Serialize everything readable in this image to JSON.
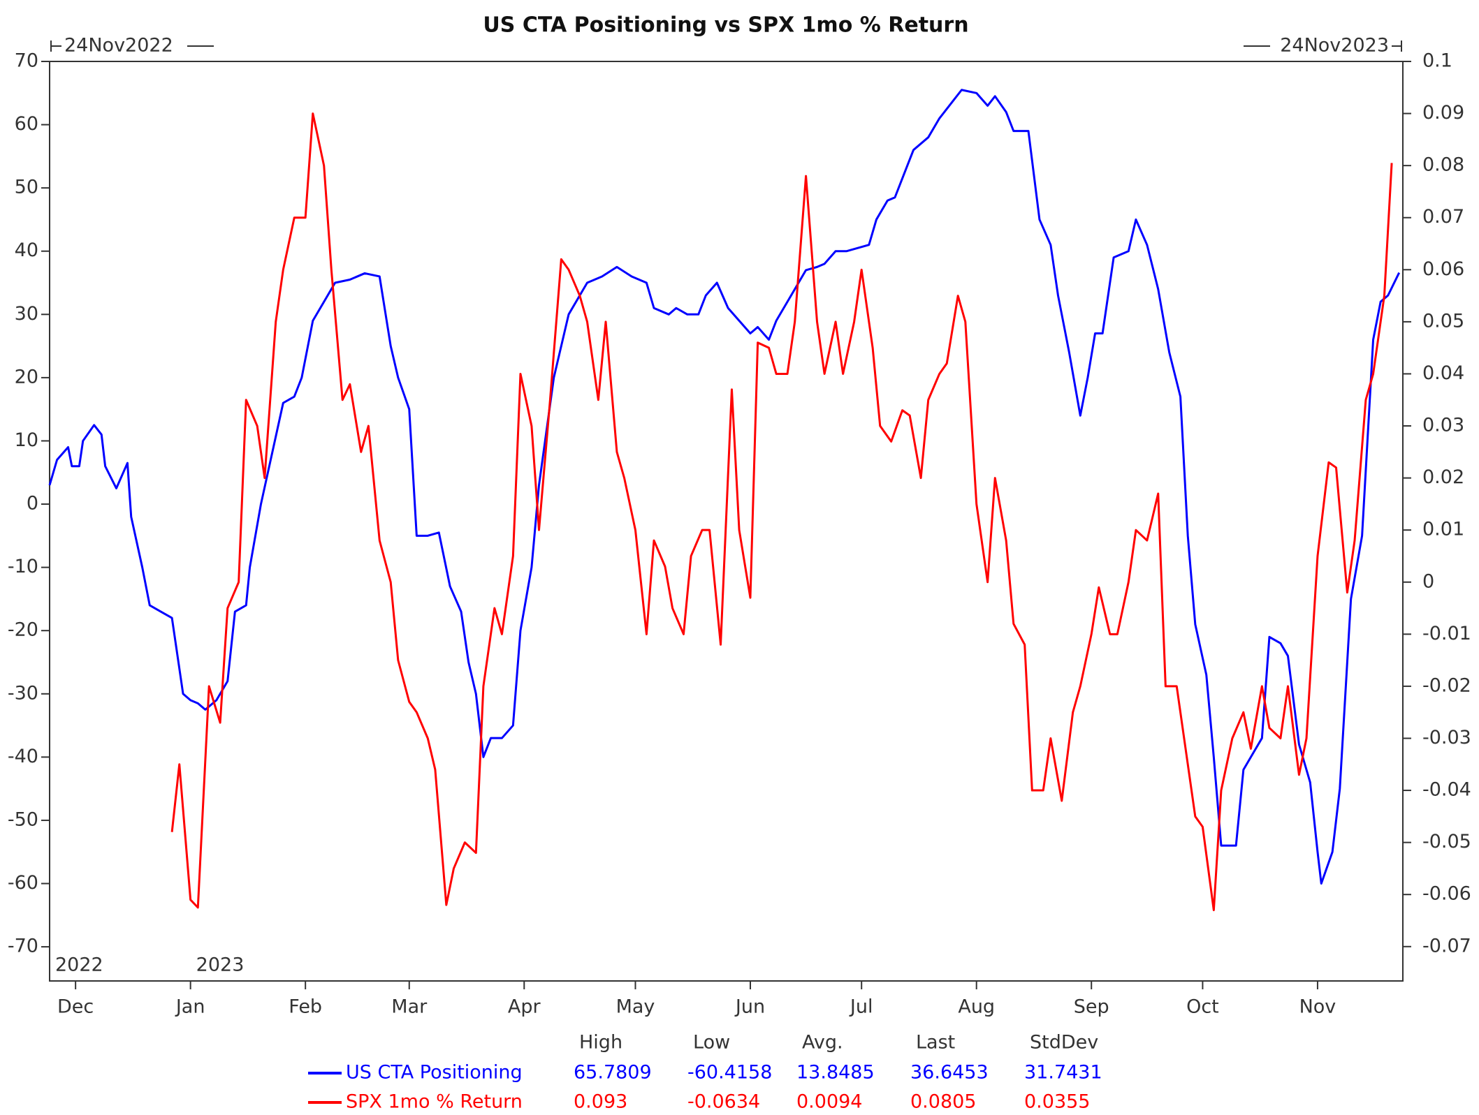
{
  "chart_data": {
    "type": "line",
    "title": "US CTA Positioning vs SPX 1mo % Return",
    "start_label": "24Nov2022",
    "end_label": "24Nov2023",
    "xlim": [
      0,
      365
    ],
    "xticks": [
      {
        "value": 7,
        "label": "Dec"
      },
      {
        "value": 38,
        "label": "Jan"
      },
      {
        "value": 69,
        "label": "Feb"
      },
      {
        "value": 97,
        "label": "Mar"
      },
      {
        "value": 128,
        "label": "Apr"
      },
      {
        "value": 158,
        "label": "May"
      },
      {
        "value": 189,
        "label": "Jun"
      },
      {
        "value": 219,
        "label": "Jul"
      },
      {
        "value": 250,
        "label": "Aug"
      },
      {
        "value": 281,
        "label": "Sep"
      },
      {
        "value": 311,
        "label": "Oct"
      },
      {
        "value": 342,
        "label": "Nov"
      }
    ],
    "year_labels": [
      {
        "value": 0,
        "label": "2022"
      },
      {
        "value": 38,
        "label": "2023"
      }
    ],
    "ylim": [
      -75.4,
      70
    ],
    "yticks": [
      -70,
      -60,
      -50,
      -40,
      -30,
      -20,
      -10,
      0,
      10,
      20,
      30,
      40,
      50,
      60,
      70
    ],
    "y2lim": [
      -0.0766,
      0.1
    ],
    "y2ticks": [
      -0.07,
      -0.06,
      -0.05,
      -0.04,
      -0.03,
      -0.02,
      -0.01,
      0,
      0.01,
      0.02,
      0.03,
      0.04,
      0.05,
      0.06,
      0.07,
      0.08,
      0.09,
      0.1
    ],
    "grid": false,
    "stats_headers": [
      "High",
      "Low",
      "Avg.",
      "Last",
      "StdDev"
    ],
    "series": [
      {
        "name": "US CTA Positioning",
        "color": "#0000ff",
        "axis": "y",
        "stats": [
          65.7809,
          -60.4158,
          13.8485,
          36.6453,
          31.7431
        ],
        "x": [
          0,
          2,
          5,
          6,
          8,
          9,
          12,
          14,
          15,
          18,
          21,
          22,
          25,
          27,
          30,
          33,
          36,
          38,
          40,
          42,
          45,
          48,
          50,
          53,
          54,
          57,
          60,
          63,
          66,
          68,
          71,
          74,
          77,
          81,
          85,
          89,
          92,
          94,
          97,
          99,
          102,
          105,
          108,
          111,
          113,
          115,
          117,
          119,
          122,
          125,
          127,
          130,
          132,
          136,
          140,
          143,
          145,
          149,
          153,
          157,
          161,
          163,
          167,
          169,
          172,
          175,
          177,
          180,
          183,
          186,
          189,
          191,
          194,
          196,
          199,
          201,
          204,
          207,
          209,
          212,
          215,
          218,
          221,
          223,
          226,
          228,
          231,
          233,
          237,
          240,
          244,
          246,
          250,
          253,
          255,
          258,
          260,
          264,
          267,
          270,
          272,
          275,
          278,
          280,
          282,
          284,
          287,
          291,
          293,
          296,
          299,
          302,
          305,
          307,
          309,
          312,
          314,
          316,
          320,
          322,
          325,
          327,
          329,
          332,
          334,
          337,
          340,
          342,
          343,
          346,
          348,
          351,
          354,
          357,
          359,
          361,
          364
        ],
        "values": [
          3,
          7,
          9,
          6,
          6,
          10,
          12.5,
          11,
          6,
          2.5,
          6.5,
          -2,
          -10,
          -16,
          -17,
          -18,
          -30,
          -31,
          -31.5,
          -32.5,
          -31,
          -28,
          -17,
          -16,
          -10,
          0,
          8,
          16,
          17,
          20,
          29,
          32,
          35,
          35.5,
          36.5,
          36,
          25,
          20,
          15,
          -5,
          -5,
          -4.5,
          -13,
          -17,
          -25,
          -30,
          -40,
          -37,
          -37,
          -35,
          -20,
          -10,
          3,
          20,
          30,
          33,
          35,
          36,
          37.5,
          36,
          35,
          31,
          30,
          31,
          30,
          30,
          33,
          35,
          31,
          29,
          27,
          28,
          26,
          29,
          32,
          34,
          37,
          37.5,
          38,
          40,
          40,
          40.5,
          41,
          45,
          48,
          48.5,
          53,
          56,
          58,
          61,
          64,
          65.5,
          65,
          63,
          64.5,
          62,
          59,
          59,
          45,
          41,
          33,
          24,
          14,
          20,
          27,
          27,
          39,
          40,
          45,
          41,
          34,
          24,
          17,
          -5,
          -19,
          -27,
          -40,
          -54,
          -54,
          -42,
          -39,
          -37,
          -21,
          -22,
          -24,
          -38,
          -44,
          -55,
          -60,
          -55,
          -45,
          -15,
          -5,
          26,
          32,
          33,
          36.6
        ]
      },
      {
        "name": "SPX 1mo % Return",
        "color": "#ff0000",
        "axis": "y2",
        "stats": [
          0.093,
          -0.0634,
          0.0094,
          0.0805,
          0.0355
        ],
        "x": [
          33,
          35,
          38,
          40,
          43,
          46,
          48,
          51,
          53,
          56,
          58,
          61,
          63,
          66,
          69,
          71,
          74,
          76,
          79,
          81,
          84,
          86,
          89,
          92,
          94,
          97,
          99,
          102,
          104,
          107,
          109,
          112,
          115,
          117,
          120,
          122,
          125,
          127,
          130,
          132,
          135,
          138,
          140,
          143,
          145,
          148,
          150,
          153,
          155,
          158,
          161,
          163,
          166,
          168,
          171,
          173,
          176,
          178,
          181,
          184,
          186,
          189,
          191,
          194,
          196,
          199,
          201,
          204,
          207,
          209,
          212,
          214,
          217,
          219,
          222,
          224,
          227,
          230,
          232,
          235,
          237,
          240,
          242,
          245,
          247,
          250,
          253,
          255,
          258,
          260,
          263,
          265,
          268,
          270,
          273,
          276,
          278,
          281,
          283,
          286,
          288,
          291,
          293,
          296,
          299,
          301,
          304,
          306,
          309,
          311,
          314,
          316,
          319,
          322,
          324,
          327,
          329,
          332,
          334,
          337,
          339,
          342,
          345,
          347,
          350,
          352,
          355,
          357,
          360,
          362
        ],
        "values": [
          -0.048,
          -0.035,
          -0.061,
          -0.0625,
          -0.02,
          -0.027,
          -0.005,
          0,
          0.035,
          0.03,
          0.02,
          0.05,
          0.06,
          0.07,
          0.07,
          0.09,
          0.08,
          0.06,
          0.035,
          0.038,
          0.025,
          0.03,
          0.008,
          0,
          -0.015,
          -0.023,
          -0.025,
          -0.03,
          -0.036,
          -0.062,
          -0.055,
          -0.05,
          -0.052,
          -0.02,
          -0.005,
          -0.01,
          0.005,
          0.04,
          0.03,
          0.01,
          0.035,
          0.062,
          0.06,
          0.055,
          0.05,
          0.035,
          0.05,
          0.025,
          0.02,
          0.01,
          -0.01,
          0.008,
          0.003,
          -0.005,
          -0.01,
          0.005,
          0.01,
          0.01,
          -0.012,
          0.037,
          0.01,
          -0.003,
          0.046,
          0.045,
          0.04,
          0.04,
          0.05,
          0.078,
          0.05,
          0.04,
          0.05,
          0.04,
          0.05,
          0.06,
          0.045,
          0.03,
          0.027,
          0.033,
          0.032,
          0.02,
          0.035,
          0.04,
          0.042,
          0.055,
          0.05,
          0.015,
          0,
          0.02,
          0.008,
          -0.008,
          -0.012,
          -0.04,
          -0.04,
          -0.03,
          -0.042,
          -0.025,
          -0.02,
          -0.01,
          -0.001,
          -0.01,
          -0.01,
          0,
          0.01,
          0.008,
          0.017,
          -0.02,
          -0.02,
          -0.03,
          -0.045,
          -0.047,
          -0.063,
          -0.04,
          -0.03,
          -0.025,
          -0.032,
          -0.02,
          -0.028,
          -0.03,
          -0.02,
          -0.037,
          -0.03,
          0.005,
          0.023,
          0.022,
          -0.002,
          0.008,
          0.035,
          0.04,
          0.055,
          0.0805
        ]
      }
    ]
  }
}
